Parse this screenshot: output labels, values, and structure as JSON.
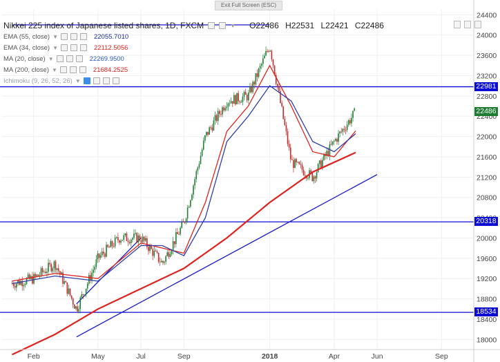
{
  "toolbar": {
    "exit_fullscreen_label": "Exit Full Screen (ESC)"
  },
  "legend": {
    "title": "Nikkei 225 index of Japanese listed shares, 1D, FXCM",
    "ohlc": {
      "open": "O22486",
      "high": "H22531",
      "low": "L22421",
      "close": "C22486"
    },
    "indicators": [
      {
        "name": "EMA (55, close)",
        "value": "22055.7010",
        "color": "#1c2e8c"
      },
      {
        "name": "EMA (34, close)",
        "value": "22112.5056",
        "color": "#e0201c"
      },
      {
        "name": "MA (20, close)",
        "value": "22269.9500",
        "color": "#2b59c3"
      },
      {
        "name": "MA (200, close)",
        "value": "21684.2525",
        "color": "#e0201c"
      },
      {
        "name": "Ichimoku (9, 26, 52, 26)",
        "value": "",
        "color": "#9aa0a8"
      }
    ]
  },
  "price_tags": [
    {
      "label": "22981",
      "value": 22981,
      "color": "#0b0bd6"
    },
    {
      "label": "22486",
      "value": 22486,
      "color": "#1e7d32"
    },
    {
      "label": "20318",
      "value": 20318,
      "color": "#0b0bd6"
    },
    {
      "label": "18534",
      "value": 18534,
      "color": "#0b0bd6"
    }
  ],
  "chart_data": {
    "type": "line",
    "title": "Nikkei 225 index of Japanese listed shares, 1D, FXCM",
    "x_tick_labels": [
      "Feb",
      "May",
      "Jul",
      "Sep",
      "2018",
      "Apr",
      "Jun",
      "Sep"
    ],
    "y_tick_labels": [
      "18000",
      "18400",
      "18800",
      "19200",
      "19600",
      "20000",
      "20400",
      "20800",
      "21200",
      "21600",
      "22000",
      "22400",
      "22800",
      "23200",
      "23600",
      "24000",
      "24400"
    ],
    "ylim": [
      17800,
      24500
    ],
    "x_months_range": [
      "2017-01",
      "2018-10"
    ],
    "series": [
      {
        "name": "Close",
        "x": [
          "2017-01",
          "2017-02",
          "2017-03",
          "2017-04",
          "2017-05",
          "2017-06",
          "2017-07",
          "2017-08",
          "2017-09",
          "2017-10",
          "2017-11",
          "2017-12",
          "2018-01",
          "2018-02",
          "2018-03",
          "2018-04",
          "2018-05"
        ],
        "y": [
          19100,
          19200,
          19500,
          18600,
          19600,
          20000,
          20000,
          19500,
          20300,
          22000,
          22700,
          22800,
          23800,
          21500,
          21200,
          21900,
          22486
        ]
      },
      {
        "name": "EMA (34, close)",
        "x": [
          "2017-01",
          "2017-03",
          "2017-05",
          "2017-07",
          "2017-08",
          "2017-09",
          "2017-10",
          "2017-11",
          "2017-12",
          "2018-01",
          "2018-02",
          "2018-03",
          "2018-04",
          "2018-05"
        ],
        "y": [
          19150,
          19300,
          19200,
          19900,
          19800,
          19700,
          20700,
          22100,
          22600,
          23400,
          22600,
          21700,
          21600,
          22112
        ]
      },
      {
        "name": "EMA (55, close)",
        "x": [
          "2017-01",
          "2017-03",
          "2017-05",
          "2017-07",
          "2017-08",
          "2017-09",
          "2017-10",
          "2017-11",
          "2017-12",
          "2018-01",
          "2018-02",
          "2018-03",
          "2018-04",
          "2018-05"
        ],
        "y": [
          19100,
          19250,
          19150,
          19850,
          19850,
          19650,
          20400,
          21900,
          22400,
          23000,
          22700,
          21900,
          21700,
          22056
        ]
      },
      {
        "name": "MA (200, close)",
        "x": [
          "2017-01",
          "2017-03",
          "2017-05",
          "2017-07",
          "2017-09",
          "2017-11",
          "2018-01",
          "2018-03",
          "2018-05"
        ],
        "y": [
          17700,
          18100,
          18600,
          19000,
          19400,
          20000,
          20700,
          21300,
          21684
        ]
      }
    ],
    "horizontal_levels": [
      22981,
      20318,
      18534
    ],
    "trendlines": [
      {
        "from": [
          "2017-04",
          18050
        ],
        "to": [
          "2018-06",
          21250
        ]
      },
      {
        "from": [
          "2017-04",
          18700
        ],
        "to": [
          "2017-07",
          20000
        ]
      },
      {
        "from": [
          "2017-01",
          24200
        ],
        "to": [
          "2018-01",
          24200
        ]
      }
    ]
  }
}
